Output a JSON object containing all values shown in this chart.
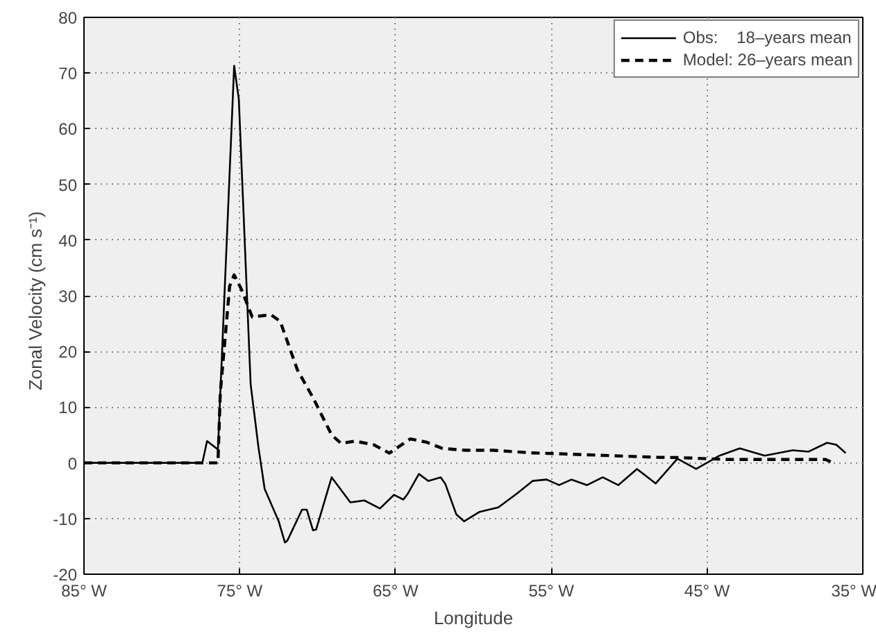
{
  "chart_data": {
    "type": "line",
    "xlabel": "Longitude",
    "ylabel": "Zonal Velocity  (cm  s⁻¹)",
    "xlim": [
      -85,
      -35
    ],
    "ylim": [
      -20,
      80
    ],
    "xticks": [
      {
        "value": -85,
        "label": "85° W"
      },
      {
        "value": -75,
        "label": "75° W"
      },
      {
        "value": -65,
        "label": "65° W"
      },
      {
        "value": -55,
        "label": "55° W"
      },
      {
        "value": -45,
        "label": "45° W"
      },
      {
        "value": -35,
        "label": "35° W"
      }
    ],
    "yticks": [
      -20,
      -10,
      0,
      10,
      20,
      30,
      40,
      50,
      60,
      70,
      80
    ],
    "grid": true,
    "legend": "top right",
    "marker": "none",
    "series": [
      {
        "name": "Obs:    18–years mean",
        "color": "#000000",
        "line_style": "solid",
        "x": [
          -85,
          -77.4,
          -77.1,
          -76.4,
          -75.36,
          -75.06,
          -74.3,
          -73.8,
          -73.4,
          -72.5,
          -72.1,
          -71.95,
          -71.0,
          -70.7,
          -70.3,
          -70.1,
          -69.1,
          -67.9,
          -67.0,
          -66.0,
          -65.1,
          -64.5,
          -64.2,
          -63.5,
          -62.9,
          -62.1,
          -61.8,
          -61.1,
          -60.6,
          -59.6,
          -58.4,
          -57.2,
          -56.2,
          -55.3,
          -54.5,
          -53.7,
          -52.7,
          -51.7,
          -50.7,
          -49.5,
          -48.3,
          -46.9,
          -45.7,
          -44.2,
          -42.9,
          -41.3,
          -39.5,
          -38.5,
          -37.3,
          -36.7,
          -36.1
        ],
        "values": [
          0,
          0,
          3.9,
          2.4,
          71.3,
          65.3,
          14.1,
          2.8,
          -4.7,
          -10.5,
          -14.3,
          -14,
          -8.4,
          -8.4,
          -12.1,
          -12,
          -2.6,
          -7.1,
          -6.75,
          -8.2,
          -5.75,
          -6.6,
          -5.5,
          -2.0,
          -3.25,
          -2.6,
          -3.8,
          -9.25,
          -10.5,
          -8.8,
          -8.0,
          -5.5,
          -3.25,
          -3.0,
          -4.0,
          -3.0,
          -4.0,
          -2.6,
          -4.0,
          -1.1,
          -3.7,
          0.75,
          -1.1,
          1.3,
          2.6,
          1.3,
          2.25,
          2.0,
          3.6,
          3.25,
          1.75
        ]
      },
      {
        "name": "Model: 26–years mean",
        "color": "#000000",
        "line_style": "dashed",
        "x": [
          -85,
          -76.4,
          -76.25,
          -75.65,
          -75.36,
          -74.9,
          -74.2,
          -73.0,
          -72.4,
          -71.3,
          -70.3,
          -69.1,
          -68.5,
          -67.6,
          -66.4,
          -65.4,
          -64.05,
          -63.0,
          -62.0,
          -60.5,
          -58.7,
          -56.3,
          -54.2,
          -51.25,
          -48.3,
          -46.9,
          -43.7,
          -39.2,
          -37.4,
          -36.9
        ],
        "values": [
          0,
          0,
          12.5,
          31.7,
          33.75,
          31.2,
          26.2,
          26.6,
          25.4,
          16.7,
          11.7,
          5.0,
          3.5,
          3.9,
          3.25,
          1.75,
          4.3,
          3.7,
          2.6,
          2.25,
          2.25,
          1.8,
          1.6,
          1.3,
          1.0,
          0.95,
          0.6,
          0.6,
          0.6,
          0
        ]
      }
    ]
  }
}
